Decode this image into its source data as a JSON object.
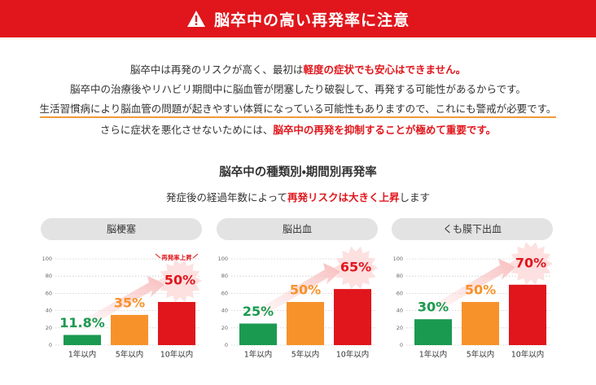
{
  "header": {
    "title": "脳卒中の高い再発率に注意"
  },
  "intro": [
    [
      "脳卒中は再発のリスクが高く、最初は",
      "軽度の症状でも安心はできません。"
    ],
    [
      "脳卒中の治療後やリハビリ期間中に脳血管が閉塞したり破裂して、再発する可能性があるからです。"
    ],
    [
      "生活習慣病により脳血管の問題が起きやすい体質になっている可能性もありますので、これにも警戒が必要です。"
    ],
    [
      "さらに症状を悪化させないためには、",
      "脳卒中の再発を抑制することが極めて重要です。"
    ]
  ],
  "section": {
    "title": "脳卒中の種類別・期間別再発率",
    "subtitle": [
      "発症後の経過年数によって",
      "再発リスクは大きく上昇",
      "します"
    ]
  },
  "chart_data": [
    {
      "type": "bar",
      "title": "脳梗塞",
      "categories": [
        "1年以内",
        "5年以内",
        "10年以内"
      ],
      "values": [
        11.8,
        35,
        50
      ],
      "value_labels": [
        "11.8%",
        "35%",
        "50%"
      ],
      "colors": [
        "#1a9a50",
        "#f7922a",
        "#e0161c"
      ],
      "ylim": [
        0,
        100
      ],
      "yticks": [
        0,
        20,
        40,
        60,
        80,
        100
      ],
      "grid": true,
      "annotation": "再発率上昇"
    },
    {
      "type": "bar",
      "title": "脳出血",
      "categories": [
        "1年以内",
        "5年以内",
        "10年以内"
      ],
      "values": [
        25,
        50,
        65
      ],
      "value_labels": [
        "25%",
        "50%",
        "65%"
      ],
      "colors": [
        "#1a9a50",
        "#f7922a",
        "#e0161c"
      ],
      "ylim": [
        0,
        100
      ],
      "yticks": [
        0,
        20,
        40,
        60,
        80,
        100
      ],
      "grid": true
    },
    {
      "type": "bar",
      "title": "くも膜下出血",
      "categories": [
        "1年以内",
        "5年以内",
        "10年以内"
      ],
      "values": [
        30,
        50,
        70
      ],
      "value_labels": [
        "30%",
        "50%",
        "70%"
      ],
      "colors": [
        "#1a9a50",
        "#f7922a",
        "#e0161c"
      ],
      "ylim": [
        0,
        100
      ],
      "yticks": [
        0,
        20,
        40,
        60,
        80,
        100
      ],
      "grid": true
    }
  ]
}
